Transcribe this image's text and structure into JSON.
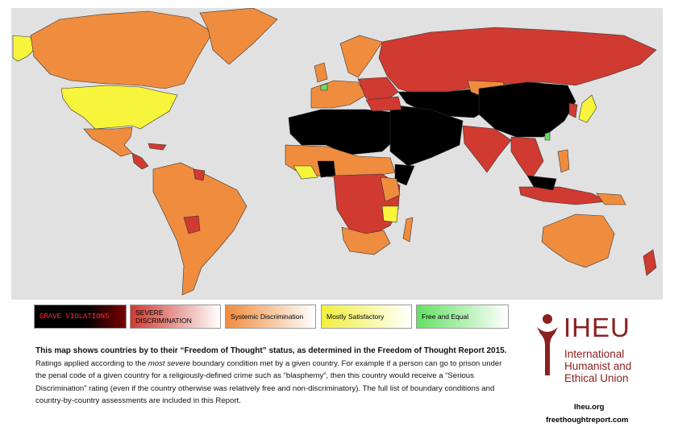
{
  "legend": {
    "grave": "GRAVE VIOLATIONS",
    "severe": "SEVERE DISCRIMINATION",
    "systemic": "Systemic Discrimination",
    "mostly": "Mostly Satisfactory",
    "free": "Free and Equal"
  },
  "colors": {
    "grave": "#000000",
    "severe": "#d03a30",
    "systemic": "#f08c3e",
    "mostly": "#f7f43c",
    "free": "#63e063",
    "ocean": "#e1e1e1"
  },
  "caption": {
    "lead": "This map shows countries by to their “Freedom of Thought” status, as determined in the Freedom of Thought Report 2015.",
    "p1": "Ratings applied according to the ",
    "p1_em": "most severe",
    "p1_rest": " boundary condition met by a given country. For example if a person can go to prison under the penal code of a given country for a religiously-defined crime such as “blasphemy”, then this country would receive a “Serious Discrimination” rating (even if the country otherwise was relatively free and non-discriminatory). The full list of boundary conditions and country-by-country assessments are included in this Report."
  },
  "logo": {
    "word": "IHEU",
    "line1": "International",
    "line2": "Humanist and",
    "line3": "Ethical Union"
  },
  "links": {
    "site1": "Iheu.org",
    "site2": "freethoughtreport.com"
  }
}
